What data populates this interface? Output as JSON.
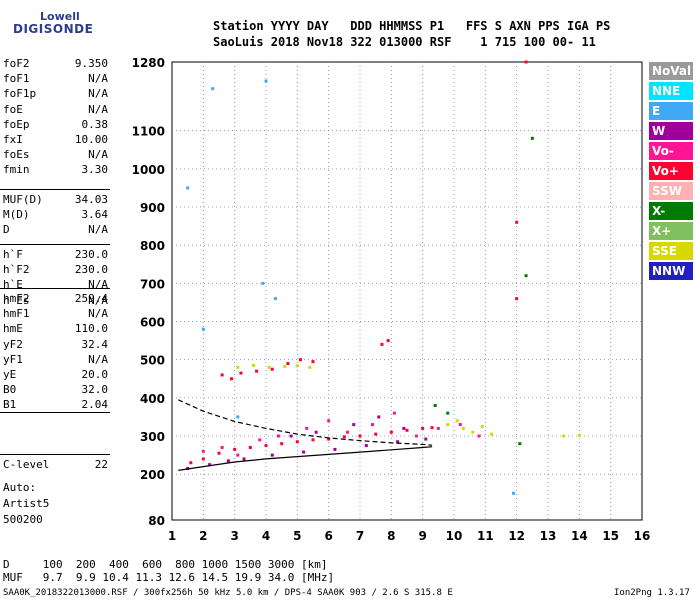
{
  "logo": {
    "line1": "Lowell",
    "line2": "DIGISONDE"
  },
  "header": {
    "line1": "Station YYYY DAY   DDD HHMMSS P1   FFS S AXN PPS IGA PS",
    "line2": "SaoLuis 2018 Nov18 322 013000 RSF    1 715 100 00- 11"
  },
  "params": {
    "group1": [
      {
        "k": "foF2",
        "v": "9.350"
      },
      {
        "k": "foF1",
        "v": "N/A"
      },
      {
        "k": "foF1p",
        "v": "N/A"
      },
      {
        "k": "foE",
        "v": "N/A"
      },
      {
        "k": "foEp",
        "v": "0.38"
      },
      {
        "k": "fxI",
        "v": "10.00"
      },
      {
        "k": "foEs",
        "v": "N/A"
      },
      {
        "k": "fmin",
        "v": "3.30"
      }
    ],
    "group2": [
      {
        "k": "MUF(D)",
        "v": "34.03"
      },
      {
        "k": "M(D)",
        "v": "3.64"
      },
      {
        "k": "D",
        "v": "N/A"
      }
    ],
    "group3": [
      {
        "k": "h`F",
        "v": "230.0"
      },
      {
        "k": "h`F2",
        "v": "230.0"
      },
      {
        "k": "h`E",
        "v": "N/A"
      },
      {
        "k": "h`Es",
        "v": "N/A"
      }
    ],
    "group4": [
      {
        "k": "hmF2",
        "v": "259.4"
      },
      {
        "k": "hmF1",
        "v": "N/A"
      },
      {
        "k": "hmE",
        "v": "110.0"
      },
      {
        "k": "yF2",
        "v": "32.4"
      },
      {
        "k": "yF1",
        "v": "N/A"
      },
      {
        "k": "yE",
        "v": "20.0"
      },
      {
        "k": "B0",
        "v": "32.0"
      },
      {
        "k": "B1",
        "v": "2.04"
      }
    ],
    "clevel": {
      "k": "C-level",
      "v": "22"
    },
    "auto": [
      "Auto:",
      "Artist5",
      "500200"
    ]
  },
  "bottom": {
    "d_line": "D     100  200  400  600  800 1000 1500 3000 [km]",
    "muf_line": "MUF   9.7  9.9 10.4 11.3 12.6 14.5 19.9 34.0 [MHz]"
  },
  "footer": {
    "left": "SAA0K_2018322013000.RSF / 300fx256h 50 kHz 5.0 km / DPS-4 SAA0K 903 / 2.6 S 315.8 E",
    "right": "Ion2Png 1.3.17"
  },
  "legend": [
    {
      "label": "NoVal",
      "color": "#9a9a9a"
    },
    {
      "label": "NNE",
      "color": "#00e5ff"
    },
    {
      "label": "E",
      "color": "#3fa9f5"
    },
    {
      "label": "W",
      "color": "#a0009a"
    },
    {
      "label": "Vo-",
      "color": "#ff1493"
    },
    {
      "label": "Vo+",
      "color": "#ff0030"
    },
    {
      "label": "SSW",
      "color": "#ffb0b0"
    },
    {
      "label": "X-",
      "color": "#007a00"
    },
    {
      "label": "X+",
      "color": "#80c060"
    },
    {
      "label": "SSE",
      "color": "#d8d800"
    },
    {
      "label": "NNW",
      "color": "#2020c0"
    }
  ],
  "chart_data": {
    "type": "scatter",
    "title": "",
    "xlabel": "",
    "ylabel": "",
    "xlim": [
      1,
      16
    ],
    "ylim": [
      80,
      1280
    ],
    "x_ticks": [
      1,
      2,
      3,
      4,
      5,
      6,
      7,
      8,
      9,
      10,
      11,
      12,
      13,
      14,
      15,
      16
    ],
    "y_ticks": [
      80,
      200,
      300,
      400,
      500,
      600,
      700,
      800,
      900,
      1000,
      1100,
      1280
    ],
    "grid": true,
    "legend_placement": "right",
    "series": [
      {
        "color": "#ff0030",
        "points": [
          [
            1.6,
            230
          ],
          [
            2.0,
            240
          ],
          [
            2.5,
            255
          ],
          [
            3.0,
            265
          ],
          [
            3.5,
            270
          ],
          [
            4.0,
            275
          ],
          [
            4.5,
            280
          ],
          [
            5.0,
            285
          ],
          [
            5.5,
            290
          ],
          [
            6.0,
            292
          ],
          [
            6.5,
            298
          ],
          [
            7.0,
            300
          ],
          [
            7.5,
            305
          ],
          [
            8.0,
            310
          ],
          [
            8.5,
            315
          ],
          [
            9.0,
            320
          ],
          [
            9.3,
            322
          ]
        ]
      },
      {
        "color": "#a0009a",
        "points": [
          [
            1.5,
            215
          ],
          [
            2.2,
            225
          ],
          [
            2.8,
            235
          ],
          [
            3.3,
            240
          ],
          [
            4.2,
            250
          ],
          [
            5.2,
            258
          ],
          [
            6.2,
            265
          ],
          [
            7.2,
            275
          ],
          [
            8.2,
            285
          ],
          [
            9.1,
            292
          ],
          [
            4.8,
            300
          ],
          [
            5.6,
            310
          ],
          [
            6.8,
            330
          ],
          [
            7.6,
            350
          ],
          [
            8.4,
            320
          ]
        ]
      },
      {
        "color": "#ff1493",
        "points": [
          [
            2.0,
            260
          ],
          [
            2.6,
            270
          ],
          [
            3.1,
            250
          ],
          [
            3.8,
            290
          ],
          [
            4.4,
            300
          ],
          [
            5.3,
            320
          ],
          [
            6.0,
            340
          ],
          [
            6.6,
            310
          ],
          [
            7.4,
            330
          ],
          [
            8.1,
            360
          ],
          [
            8.8,
            300
          ],
          [
            9.5,
            320
          ],
          [
            10.2,
            330
          ],
          [
            10.8,
            300
          ]
        ]
      },
      {
        "color": "#d8d800",
        "points": [
          [
            3.1,
            480
          ],
          [
            3.6,
            485
          ],
          [
            4.1,
            480
          ],
          [
            4.6,
            482
          ],
          [
            5.0,
            484
          ],
          [
            5.4,
            480
          ],
          [
            9.8,
            330
          ],
          [
            10.1,
            340
          ],
          [
            10.3,
            320
          ],
          [
            10.6,
            310
          ],
          [
            10.9,
            325
          ],
          [
            11.2,
            305
          ],
          [
            13.5,
            300
          ],
          [
            14.0,
            302
          ]
        ]
      },
      {
        "color": "#3fa9f5",
        "points": [
          [
            1.5,
            950
          ],
          [
            2.0,
            580
          ],
          [
            2.3,
            1210
          ],
          [
            3.1,
            350
          ],
          [
            3.9,
            700
          ],
          [
            4.0,
            1230
          ],
          [
            4.3,
            660
          ],
          [
            11.9,
            150
          ]
        ]
      },
      {
        "color": "#007a00",
        "points": [
          [
            12.5,
            1080
          ],
          [
            12.3,
            720
          ],
          [
            12.1,
            280
          ],
          [
            9.4,
            380
          ],
          [
            9.8,
            360
          ]
        ]
      },
      {
        "color": "#ff0030",
        "points": [
          [
            2.6,
            460
          ],
          [
            2.9,
            450
          ],
          [
            3.2,
            465
          ],
          [
            3.7,
            470
          ],
          [
            4.2,
            475
          ],
          [
            4.7,
            490
          ],
          [
            5.1,
            500
          ],
          [
            5.5,
            495
          ],
          [
            7.7,
            540
          ],
          [
            7.9,
            550
          ],
          [
            12.0,
            860
          ],
          [
            12.3,
            1280
          ],
          [
            12.0,
            660
          ]
        ]
      }
    ],
    "lines": [
      {
        "color": "#000000",
        "dashed": true,
        "points": [
          [
            1.2,
            395
          ],
          [
            2.0,
            365
          ],
          [
            3.0,
            338
          ],
          [
            4.0,
            320
          ],
          [
            5.0,
            305
          ],
          [
            6.0,
            295
          ],
          [
            7.0,
            288
          ],
          [
            8.0,
            282
          ],
          [
            9.0,
            278
          ],
          [
            9.3,
            276
          ]
        ]
      },
      {
        "color": "#000000",
        "dashed": false,
        "points": [
          [
            1.2,
            210
          ],
          [
            2.0,
            220
          ],
          [
            3.0,
            232
          ],
          [
            4.0,
            240
          ],
          [
            5.0,
            246
          ],
          [
            6.0,
            252
          ],
          [
            7.0,
            258
          ],
          [
            8.0,
            264
          ],
          [
            9.0,
            270
          ],
          [
            9.3,
            272
          ]
        ]
      }
    ]
  }
}
